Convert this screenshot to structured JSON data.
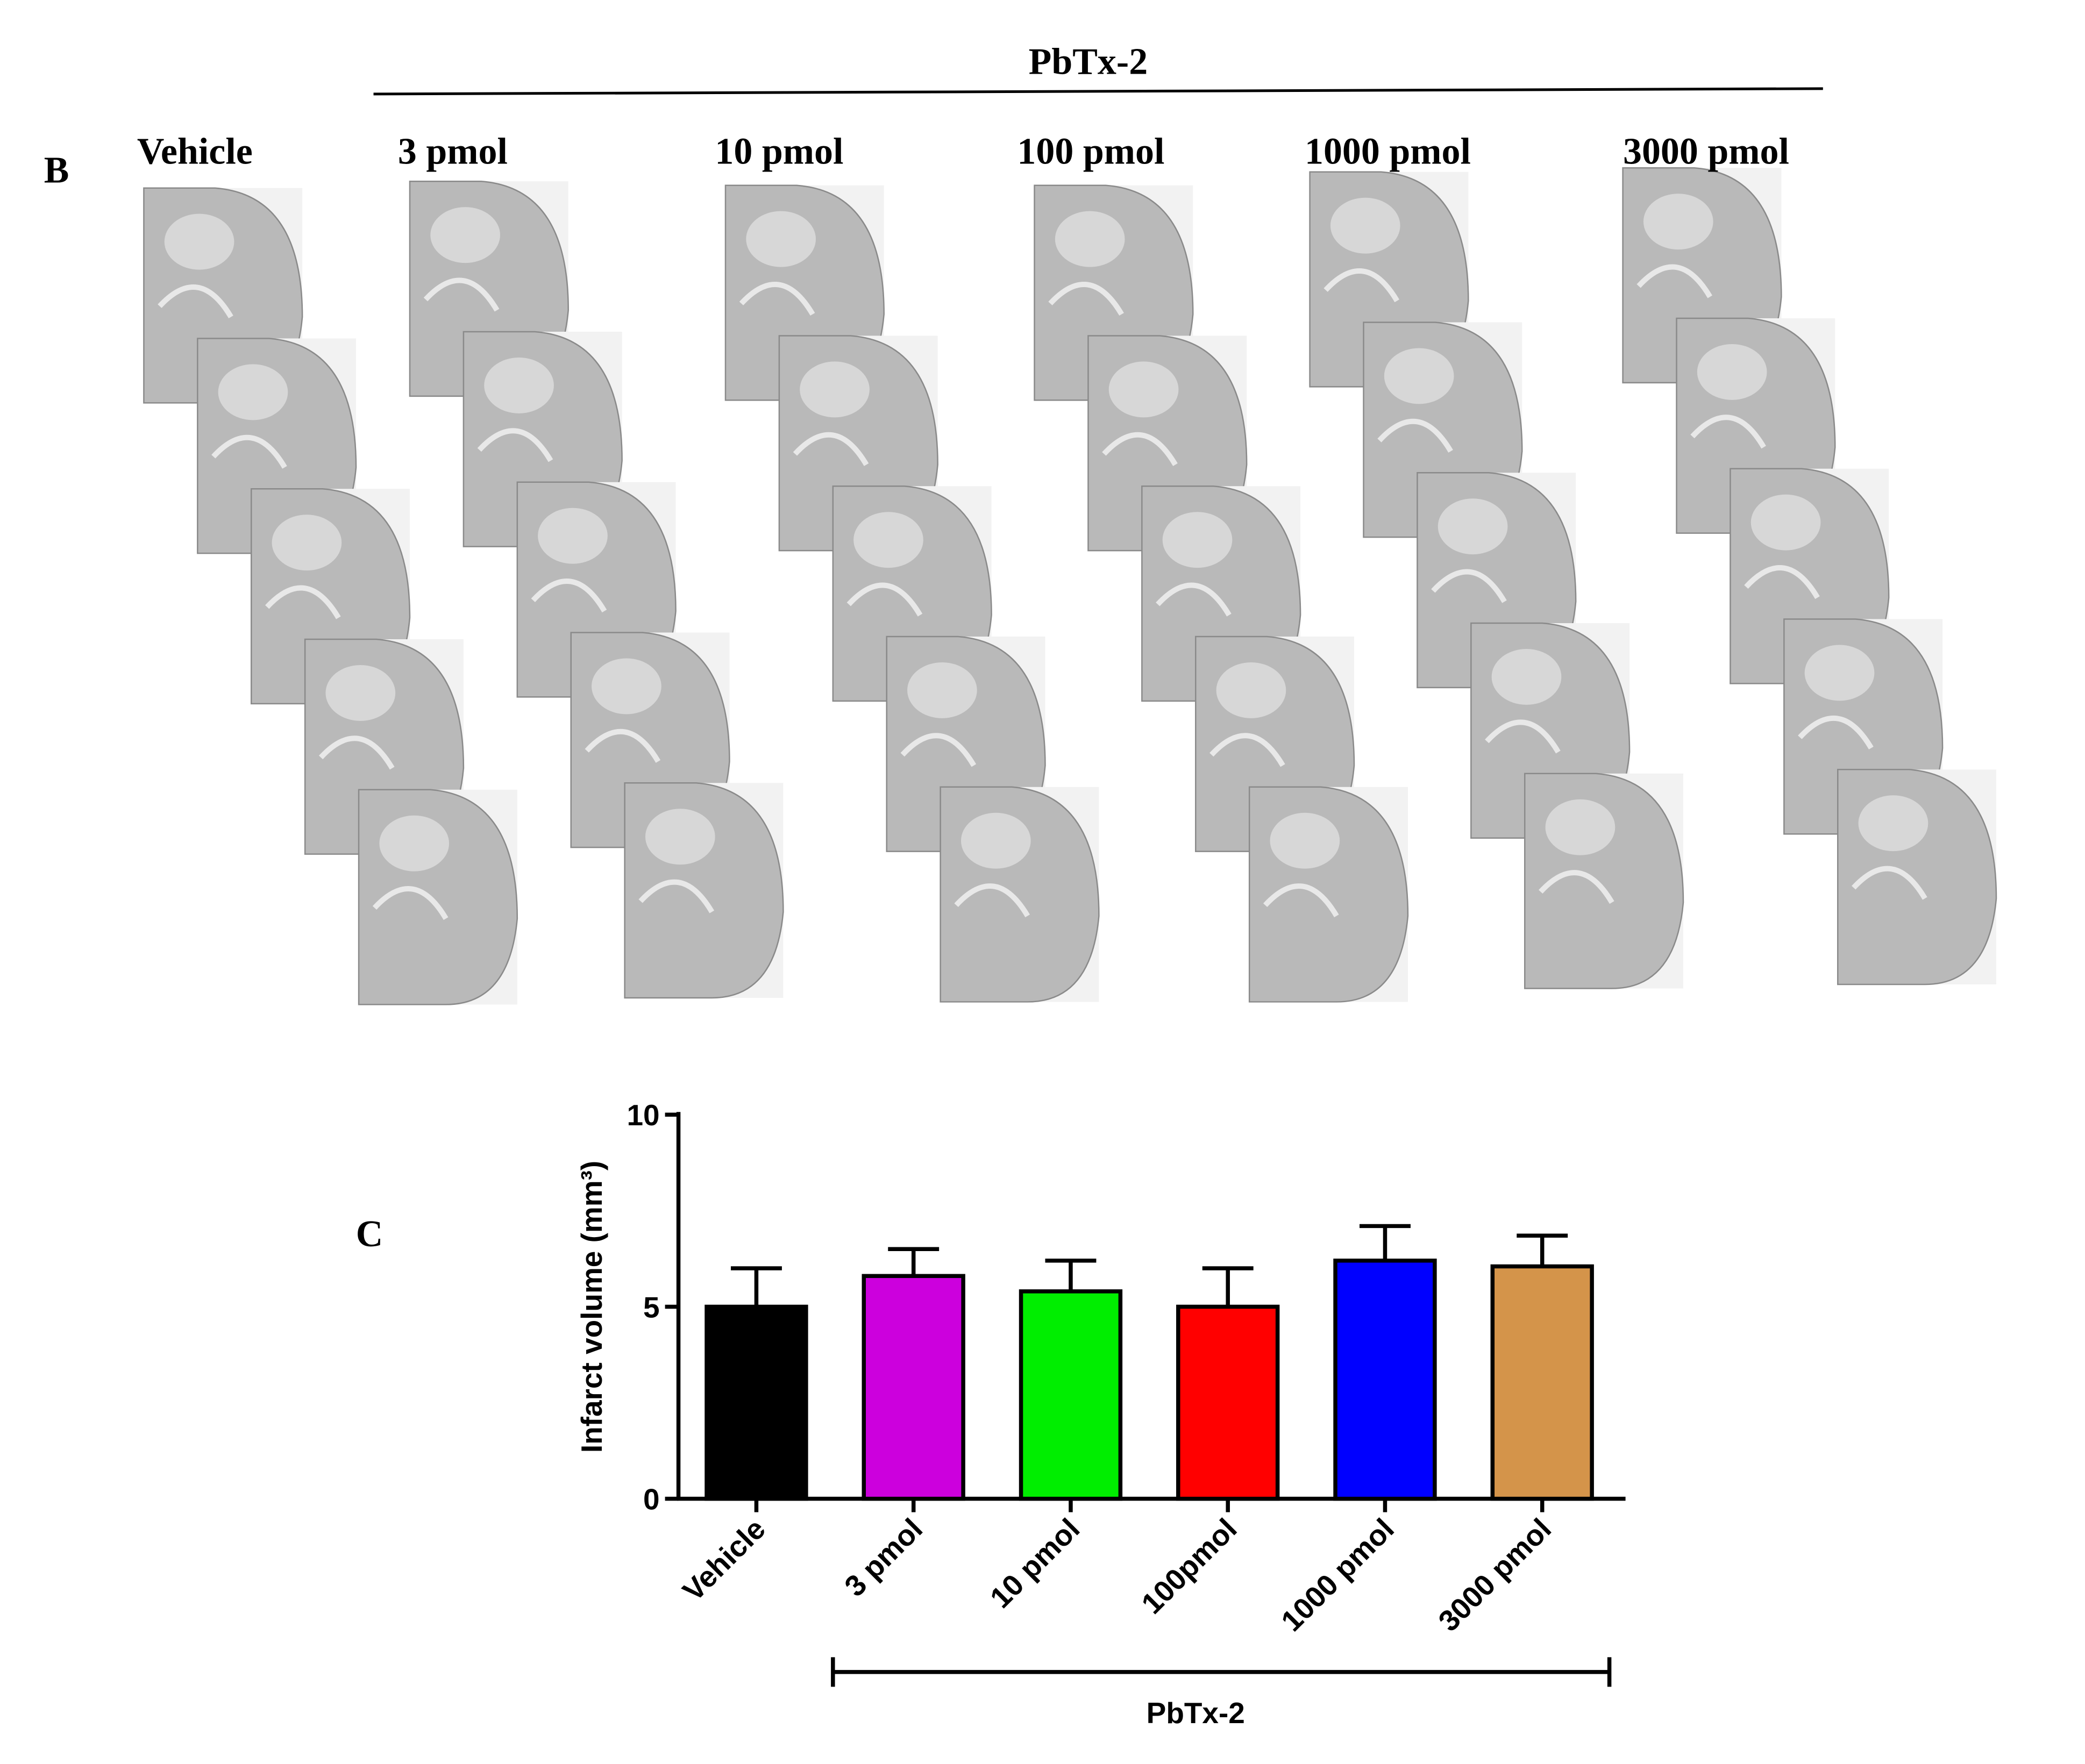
{
  "panel_b": {
    "label": "B",
    "group_label": "PbTx-2",
    "columns": [
      "Vehicle",
      "3 pmol",
      "10 pmol",
      "100 pmol",
      "1000 pmol",
      "3000 pmol"
    ]
  },
  "chart_data": {
    "type": "bar",
    "panel_label": "C",
    "y_label": "Infarct volume (mm³)",
    "categories": [
      "Vehicle",
      "3 pmol",
      "10 pmol",
      "100pmol",
      "1000 pmol",
      "3000 pmol"
    ],
    "values": [
      5.0,
      5.8,
      5.4,
      5.0,
      6.2,
      6.05
    ],
    "errors": [
      1.0,
      0.7,
      0.8,
      1.0,
      0.9,
      0.8
    ],
    "colors": [
      "#000000",
      "#cc00dd",
      "#00ee00",
      "#ff0000",
      "#0000ff",
      "#d4944a"
    ],
    "ylim": [
      0,
      10
    ],
    "yticks": [
      0,
      5,
      10
    ],
    "group_label": "PbTx-2"
  }
}
